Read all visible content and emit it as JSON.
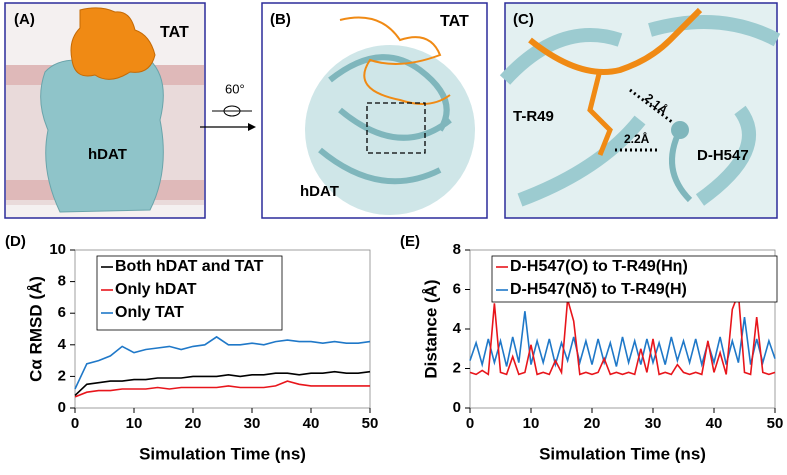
{
  "panels": {
    "a": {
      "label": "(A)",
      "tat": "TAT",
      "hdat": "hDAT"
    },
    "rotation": "60°",
    "b": {
      "label": "(B)",
      "tat": "TAT",
      "hdat": "hDAT"
    },
    "c": {
      "label": "(C)",
      "residue1": "T-R49",
      "residue2": "D-H547",
      "dist1": "2.1Å",
      "dist2": "2.2Å"
    }
  },
  "chart_data": [
    {
      "type": "line",
      "title": "(D)",
      "x_label": "Simulation Time (ns)",
      "y_label": "Cα RMSD (Å)",
      "x": [
        0,
        2,
        4,
        6,
        8,
        10,
        12,
        14,
        16,
        18,
        20,
        22,
        24,
        26,
        28,
        30,
        32,
        34,
        36,
        38,
        40,
        42,
        44,
        46,
        48,
        50
      ],
      "xlim": [
        0,
        50
      ],
      "xticks": [
        0,
        10,
        20,
        30,
        40,
        50
      ],
      "ylim": [
        0,
        10
      ],
      "yticks": [
        0,
        2,
        4,
        6,
        8,
        10
      ],
      "legend": "upper-left",
      "series": [
        {
          "name": "Both hDAT and TAT",
          "color": "#000000",
          "values": [
            0.8,
            1.5,
            1.6,
            1.7,
            1.7,
            1.8,
            1.8,
            1.9,
            1.9,
            1.9,
            2.0,
            2.0,
            2.0,
            2.1,
            2.0,
            2.1,
            2.1,
            2.2,
            2.2,
            2.1,
            2.2,
            2.2,
            2.3,
            2.2,
            2.2,
            2.3
          ]
        },
        {
          "name": "Only hDAT",
          "color": "#e8151b",
          "values": [
            0.7,
            1.0,
            1.1,
            1.1,
            1.2,
            1.2,
            1.2,
            1.3,
            1.2,
            1.3,
            1.3,
            1.3,
            1.3,
            1.4,
            1.3,
            1.3,
            1.3,
            1.4,
            1.7,
            1.5,
            1.4,
            1.4,
            1.4,
            1.4,
            1.4,
            1.4
          ]
        },
        {
          "name": "Only TAT",
          "color": "#1f78c8",
          "values": [
            1.2,
            2.8,
            3.0,
            3.3,
            3.9,
            3.5,
            3.7,
            3.8,
            3.9,
            3.7,
            3.9,
            4.0,
            4.5,
            4.0,
            4.0,
            4.1,
            4.0,
            4.2,
            4.3,
            4.2,
            4.2,
            4.1,
            4.2,
            4.1,
            4.1,
            4.2
          ]
        }
      ]
    },
    {
      "type": "line",
      "title": "(E)",
      "x_label": "Simulation Time (ns)",
      "y_label": "Distance (Å)",
      "x": [
        0,
        1,
        2,
        3,
        4,
        5,
        6,
        7,
        8,
        9,
        10,
        11,
        12,
        13,
        14,
        15,
        16,
        17,
        18,
        19,
        20,
        21,
        22,
        23,
        24,
        25,
        26,
        27,
        28,
        29,
        30,
        31,
        32,
        33,
        34,
        35,
        36,
        37,
        38,
        39,
        40,
        41,
        42,
        43,
        44,
        45,
        46,
        47,
        48,
        49,
        50
      ],
      "xlim": [
        0,
        50
      ],
      "xticks": [
        0,
        10,
        20,
        30,
        40,
        50
      ],
      "ylim": [
        0,
        8
      ],
      "yticks": [
        0,
        2,
        4,
        6,
        8
      ],
      "legend": "upper-left",
      "series": [
        {
          "name": "D-H547(O) to T-R49(Hη)",
          "color": "#e8151b",
          "values": [
            1.8,
            1.7,
            1.9,
            1.7,
            5.3,
            1.8,
            1.7,
            2.6,
            1.7,
            1.8,
            3.2,
            1.7,
            1.8,
            1.7,
            2.4,
            1.8,
            5.5,
            4.4,
            1.7,
            1.8,
            1.7,
            1.8,
            2.5,
            1.7,
            1.8,
            1.7,
            1.8,
            1.7,
            3.0,
            1.8,
            3.5,
            1.7,
            1.8,
            1.7,
            2.2,
            1.8,
            1.7,
            1.8,
            1.7,
            3.4,
            1.8,
            2.8,
            1.7,
            5.0,
            5.8,
            1.8,
            1.7,
            4.6,
            1.8,
            1.7,
            1.8
          ]
        },
        {
          "name": "D-H547(Nδ) to T-R49(H)",
          "color": "#1f78c8",
          "values": [
            2.4,
            3.3,
            2.2,
            3.5,
            2.3,
            3.4,
            2.1,
            3.6,
            2.3,
            4.9,
            2.2,
            3.4,
            2.3,
            3.5,
            2.2,
            3.3,
            2.4,
            3.6,
            2.3,
            3.4,
            2.2,
            3.5,
            2.3,
            3.3,
            2.1,
            3.6,
            2.3,
            3.4,
            2.2,
            3.5,
            2.3,
            3.3,
            2.2,
            3.6,
            2.4,
            3.4,
            2.3,
            3.5,
            2.2,
            3.3,
            2.3,
            3.6,
            2.2,
            3.4,
            2.3,
            4.6,
            2.2,
            3.5,
            2.3,
            3.4,
            2.5
          ]
        }
      ]
    }
  ]
}
